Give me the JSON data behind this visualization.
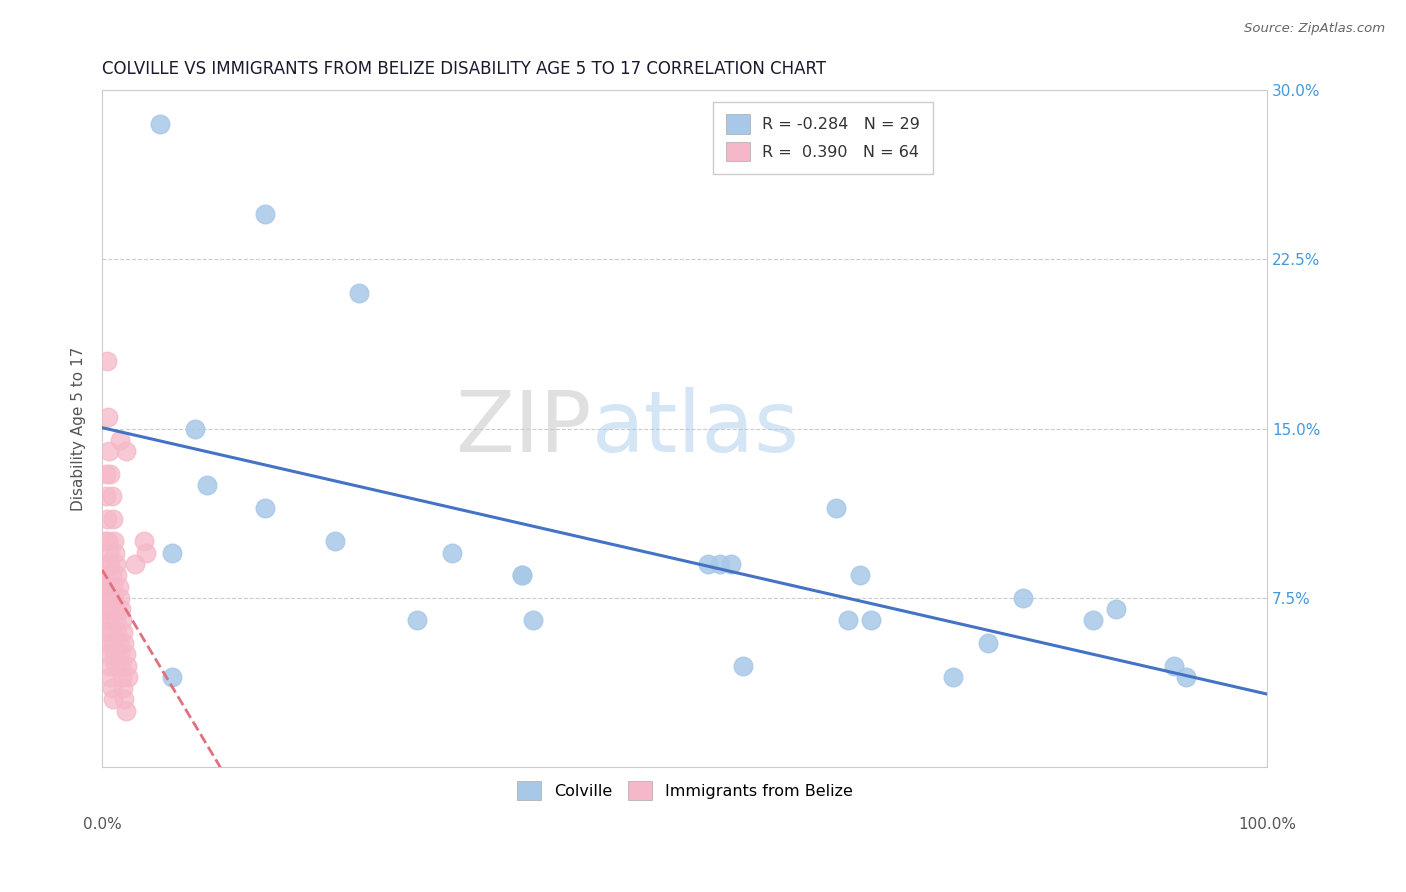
{
  "title": "COLVILLE VS IMMIGRANTS FROM BELIZE DISABILITY AGE 5 TO 17 CORRELATION CHART",
  "source": "Source: ZipAtlas.com",
  "ylabel": "Disability Age 5 to 17",
  "xlim": [
    0.0,
    1.0
  ],
  "ylim": [
    0.0,
    0.3
  ],
  "colville_R": -0.284,
  "colville_N": 29,
  "belize_R": 0.39,
  "belize_N": 64,
  "colville_color": "#a8c8e8",
  "belize_color": "#f5b8c8",
  "trend_colville_color": "#4472c4",
  "trend_belize_color": "#e07080",
  "watermark_zip": "ZIP",
  "watermark_atlas": "atlas",
  "background_color": "#ffffff",
  "grid_color": "#cccccc",
  "colville_x": [
    0.05,
    0.14,
    0.22,
    0.08,
    0.09,
    0.14,
    0.2,
    0.3,
    0.36,
    0.52,
    0.54,
    0.64,
    0.66,
    0.79,
    0.63,
    0.87,
    0.92,
    0.06,
    0.27,
    0.37,
    0.55,
    0.73,
    0.36,
    0.53,
    0.65,
    0.76,
    0.85,
    0.93,
    0.06
  ],
  "colville_y": [
    0.285,
    0.245,
    0.21,
    0.15,
    0.125,
    0.115,
    0.1,
    0.095,
    0.085,
    0.09,
    0.09,
    0.065,
    0.065,
    0.075,
    0.115,
    0.07,
    0.045,
    0.095,
    0.065,
    0.065,
    0.045,
    0.04,
    0.085,
    0.09,
    0.085,
    0.055,
    0.065,
    0.04,
    0.04
  ],
  "belize_x": [
    0.004,
    0.005,
    0.006,
    0.007,
    0.008,
    0.009,
    0.01,
    0.011,
    0.012,
    0.013,
    0.014,
    0.015,
    0.016,
    0.017,
    0.018,
    0.019,
    0.02,
    0.021,
    0.022,
    0.003,
    0.003,
    0.004,
    0.005,
    0.006,
    0.007,
    0.008,
    0.009,
    0.01,
    0.011,
    0.012,
    0.013,
    0.014,
    0.015,
    0.016,
    0.017,
    0.018,
    0.019,
    0.02,
    0.002,
    0.002,
    0.003,
    0.004,
    0.005,
    0.006,
    0.007,
    0.008,
    0.009,
    0.01,
    0.011,
    0.001,
    0.001,
    0.002,
    0.003,
    0.004,
    0.005,
    0.006,
    0.007,
    0.008,
    0.009,
    0.036,
    0.038,
    0.028,
    0.02,
    0.015
  ],
  "belize_y": [
    0.18,
    0.155,
    0.14,
    0.13,
    0.12,
    0.11,
    0.1,
    0.095,
    0.09,
    0.085,
    0.08,
    0.075,
    0.07,
    0.065,
    0.06,
    0.055,
    0.05,
    0.045,
    0.04,
    0.13,
    0.12,
    0.11,
    0.1,
    0.095,
    0.09,
    0.085,
    0.08,
    0.075,
    0.07,
    0.065,
    0.06,
    0.055,
    0.05,
    0.045,
    0.04,
    0.035,
    0.03,
    0.025,
    0.1,
    0.09,
    0.085,
    0.08,
    0.075,
    0.07,
    0.065,
    0.06,
    0.055,
    0.05,
    0.045,
    0.08,
    0.07,
    0.065,
    0.06,
    0.055,
    0.05,
    0.045,
    0.04,
    0.035,
    0.03,
    0.1,
    0.095,
    0.09,
    0.14,
    0.145
  ]
}
